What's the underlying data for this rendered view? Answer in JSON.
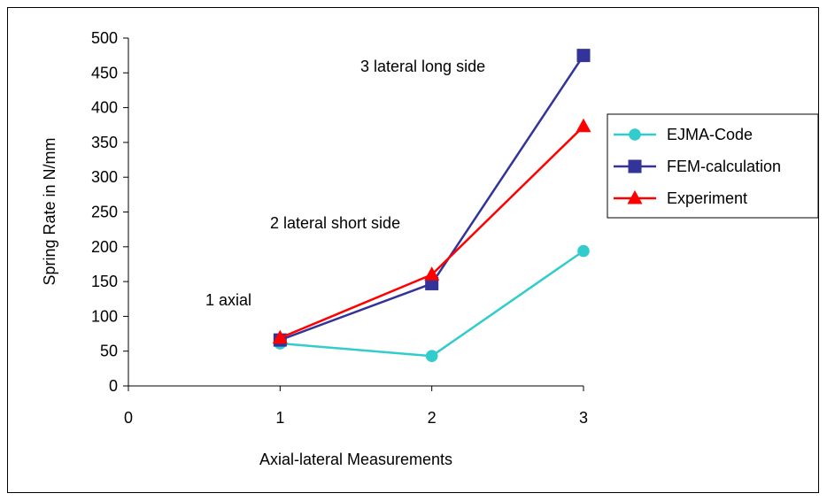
{
  "chart_data": {
    "type": "line",
    "title": "",
    "xlabel": "Axial-lateral Measurements",
    "ylabel": "Spring Rate in N/mm",
    "xlim": [
      0,
      3
    ],
    "ylim": [
      0,
      500
    ],
    "xticks": [
      "0",
      "1",
      "2",
      "3"
    ],
    "yticks": [
      "0",
      "50",
      "100",
      "150",
      "200",
      "250",
      "300",
      "350",
      "400",
      "450",
      "500"
    ],
    "grid": false,
    "legend_position": "right",
    "x": [
      1,
      2,
      3
    ],
    "series": [
      {
        "name": "EJMA-Code",
        "values": [
          61,
          43,
          194
        ],
        "color": "#33CCCC",
        "marker": "circle"
      },
      {
        "name": "FEM-calculation",
        "values": [
          66,
          147,
          475
        ],
        "color": "#333399",
        "marker": "square"
      },
      {
        "name": "Experiment",
        "values": [
          69,
          160,
          373
        ],
        "color": "#FF0000",
        "marker": "triangle"
      }
    ],
    "annotations": [
      {
        "text": "1 axial"
      },
      {
        "text": "2 lateral short side"
      },
      {
        "text": "3 lateral long side"
      }
    ]
  }
}
